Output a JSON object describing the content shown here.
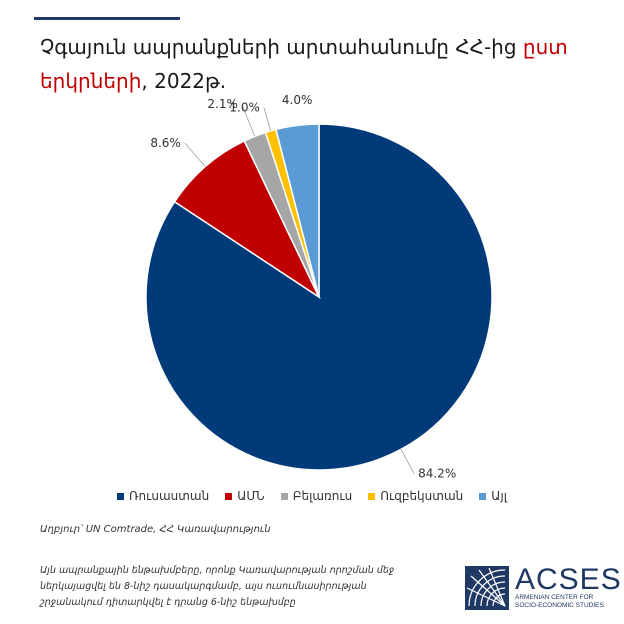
{
  "header": {
    "title_main": "Չգայուն ապրանքների արտահանումը ՀՀ-ից",
    "title_highlight": "ըստ",
    "title_line2_highlight": "երկրների",
    "title_line2_rest": ", 2022թ."
  },
  "chart_data": {
    "type": "pie",
    "labels": [
      "Ռուսաստան",
      "ԱՄՆ",
      "Բելառուս",
      "Ուզբեկստան",
      "Այլ"
    ],
    "values": [
      84.2,
      8.6,
      2.1,
      1.0,
      4.0
    ],
    "data_labels": [
      "84.2%",
      "8.6%",
      "2.1%",
      "1.0%",
      "4.0%"
    ],
    "colors": [
      "#003a78",
      "#c00000",
      "#a6a6a6",
      "#ffc000",
      "#5b9bd5"
    ],
    "legend_position": "bottom"
  },
  "footer": {
    "source": "Աղբյուր՝ UN Comtrade, ՀՀ Կառավարություն",
    "note": "Այն ապրանքային ենթախմբերը, որոնք Կառավարության որոշման մեջ ներկայացվել են 8-նիշ դասակարգմամբ, այս ուսումնասիրության շրջանակում դիտարկվել է դրանց 6-նիշ ենթախմբը",
    "logo_name": "ACSES",
    "logo_sub_1": "ARMENIAN CENTER FOR",
    "logo_sub_2": "SOCIO-ECONOMIC STUDIES"
  }
}
